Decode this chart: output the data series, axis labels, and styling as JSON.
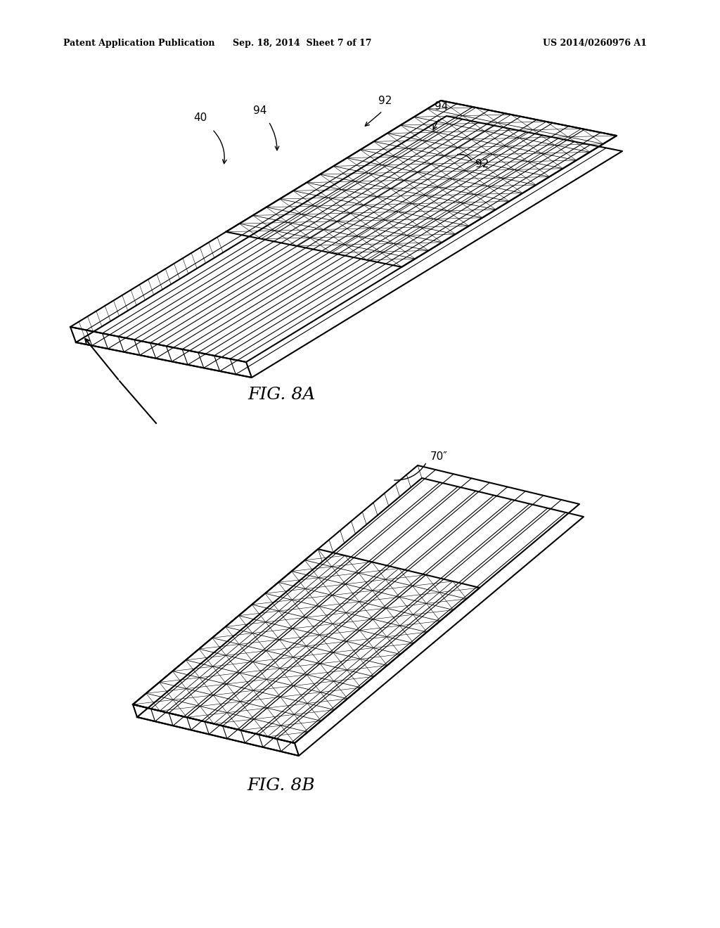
{
  "bg_color": "#ffffff",
  "text_color": "#000000",
  "line_color": "#000000",
  "header_left": "Patent Application Publication",
  "header_mid": "Sep. 18, 2014  Sheet 7 of 17",
  "header_right": "US 2014/0260976 A1",
  "fig8a_label": "FIG. 8A",
  "fig8b_label": "FIG. 8B",
  "label_40": "40",
  "label_92a": "92",
  "label_92b": "92",
  "label_94a": "94",
  "label_94b": "94",
  "label_70": "70″"
}
